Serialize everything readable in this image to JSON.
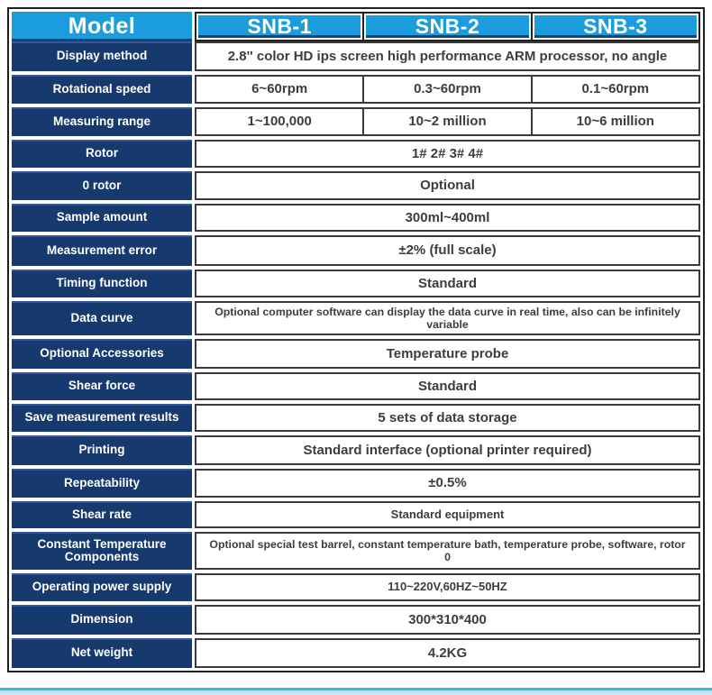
{
  "table": {
    "header": {
      "model_label": "Model",
      "columns": [
        "SNB-1",
        "SNB-2",
        "SNB-3"
      ]
    },
    "rows": [
      {
        "label": "Display method",
        "span": "2.8'' color HD ips screen high performance ARM processor, no angle"
      },
      {
        "label": "Rotational speed",
        "cells": [
          "6~60rpm",
          "0.3~60rpm",
          "0.1~60rpm"
        ]
      },
      {
        "label": "Measuring range",
        "cells": [
          "1~100,000",
          "10~2 million",
          "10~6 million"
        ]
      },
      {
        "label": "Rotor",
        "span": "1# 2# 3# 4#"
      },
      {
        "label": "0 rotor",
        "span": "Optional"
      },
      {
        "label": "Sample amount",
        "span": "300ml~400ml"
      },
      {
        "label": "Measurement error",
        "span": "±2% (full scale)"
      },
      {
        "label": "Timing function",
        "span": "Standard"
      },
      {
        "label": "Data curve",
        "span": "Optional computer software can display the data curve in real time, also can be infinitely variable"
      },
      {
        "label": "Optional Accessories",
        "span": "Temperature probe"
      },
      {
        "label": "Shear force",
        "span": "Standard"
      },
      {
        "label": "Save measurement results",
        "span": "5 sets of data storage"
      },
      {
        "label": "Printing",
        "span": "Standard interface (optional printer required)"
      },
      {
        "label": "Repeatability",
        "span": "±0.5%"
      },
      {
        "label": "Shear rate",
        "span": "Standard equipment"
      },
      {
        "label": "Constant Temperature Components",
        "span": "Optional special test barrel, constant temperature bath, temperature probe, software, rotor 0"
      },
      {
        "label": "Operating power supply",
        "span": "110~220V,60HZ~50HZ"
      },
      {
        "label": "Dimension",
        "span": "300*310*400"
      },
      {
        "label": "Net weight",
        "span": "4.2KG"
      }
    ]
  },
  "colors": {
    "header_blue": "#1b9cdc",
    "label_navy": "#163a6e",
    "border_dark": "#3a3a3a",
    "accent_cyan": "#45b5e3"
  }
}
